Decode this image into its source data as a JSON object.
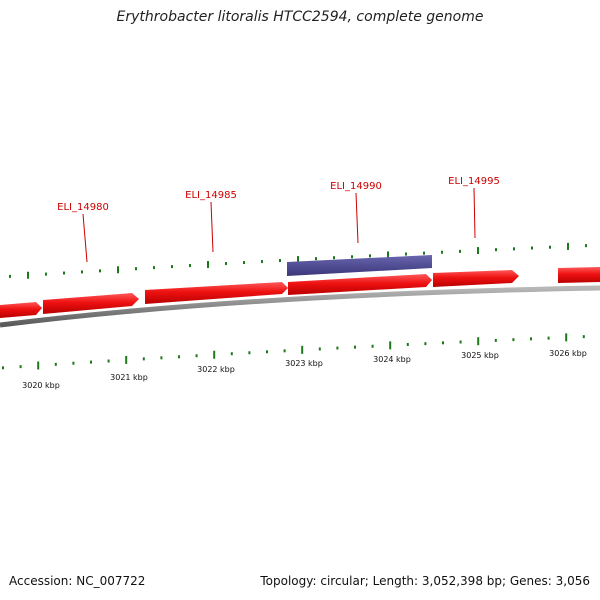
{
  "title": "Erythrobacter litoralis HTCC2594, complete genome",
  "footer": {
    "accession": "Accession: NC_007722",
    "topology": "Topology: circular; Length: 3,052,398 bp; Genes: 3,056"
  },
  "colors": {
    "forward_gene": "#ee1111",
    "reverse_gene": "#4a4690",
    "backbone": "#888888",
    "gc_tick": "#1a7a1a",
    "label": "#cc0000"
  },
  "scale": {
    "labels": [
      "3020 kbp",
      "3021 kbp",
      "3022 kbp",
      "3023 kbp",
      "3024 kbp",
      "3025 kbp",
      "3026 kbp"
    ]
  },
  "genes": [
    {
      "name": "ELI_14980"
    },
    {
      "name": "ELI_14985"
    },
    {
      "name": "ELI_14990"
    },
    {
      "name": "ELI_14995"
    }
  ]
}
